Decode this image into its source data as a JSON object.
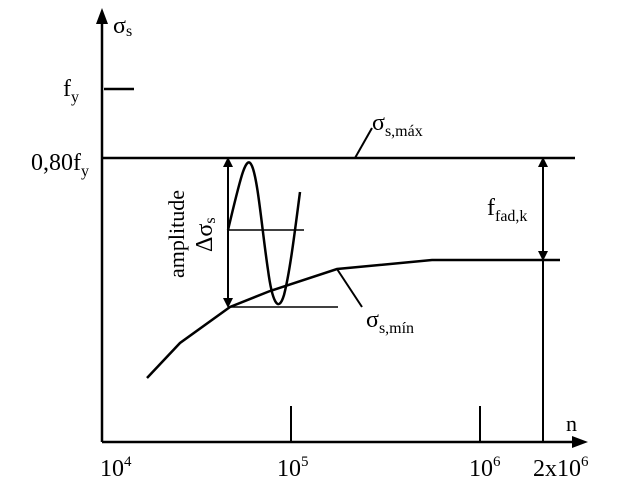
{
  "axes": {
    "y_label_main": "σ",
    "y_label_sub": "s",
    "x_label": "n"
  },
  "y_ticks": {
    "fy_main": "f",
    "fy_sub": "y",
    "fy80_main": "0,80f",
    "fy80_sub": "y"
  },
  "x_ticks": {
    "t1_base": "10",
    "t1_exp": "4",
    "t2_base": "10",
    "t2_exp": "5",
    "t3_base": "10",
    "t3_exp": "6",
    "t4_base": "2x10",
    "t4_exp": "6"
  },
  "labels": {
    "sigma_max_main": "σ",
    "sigma_max_sub": "s,máx",
    "sigma_min_main": "σ",
    "sigma_min_sub": "s,mín",
    "ffad_main": "f",
    "ffad_sub": "fad,k",
    "amplitude": "amplitude",
    "delta_main": "Δσ",
    "delta_sub": "s"
  }
}
